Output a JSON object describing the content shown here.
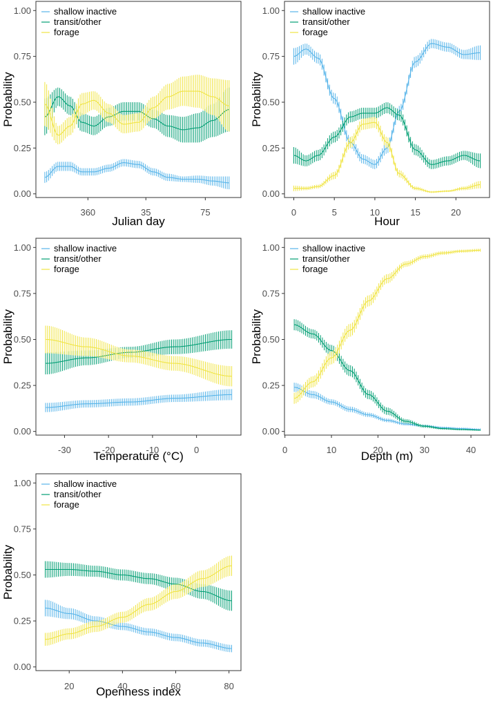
{
  "colors": {
    "shallow_inactive": "#56B4E9",
    "transit_other": "#009E73",
    "forage": "#F0E442",
    "axis": "#333333",
    "tick_text": "#4d4d4d"
  },
  "chart_data": [
    {
      "id": "julian",
      "type": "line",
      "title": "",
      "xlabel": "Julian day",
      "ylabel": "Probability",
      "xlim": [
        -35,
        103
      ],
      "ylim": [
        -0.02,
        1.05
      ],
      "grid": false,
      "legend_position": "top-left",
      "x_ticks": [
        {
          "value": 0,
          "label": "360"
        },
        {
          "value": 39,
          "label": "35"
        },
        {
          "value": 79,
          "label": "75"
        }
      ],
      "y_ticks": [
        {
          "value": 0,
          "label": "0.00"
        },
        {
          "value": 0.25,
          "label": "0.25"
        },
        {
          "value": 0.5,
          "label": "0.50"
        },
        {
          "value": 0.75,
          "label": "0.75"
        },
        {
          "value": 1,
          "label": "1.00"
        }
      ],
      "series": [
        {
          "name": "shallow inactive",
          "color_key": "shallow_inactive",
          "x": [
            -29,
            -20,
            -12,
            -4,
            4,
            14,
            24,
            34,
            44,
            54,
            64,
            74,
            84,
            95
          ],
          "y": [
            0.09,
            0.15,
            0.15,
            0.12,
            0.12,
            0.14,
            0.17,
            0.16,
            0.12,
            0.09,
            0.08,
            0.08,
            0.07,
            0.06
          ],
          "band": [
            0.03,
            0.025,
            0.025,
            0.02,
            0.02,
            0.02,
            0.02,
            0.02,
            0.02,
            0.02,
            0.015,
            0.02,
            0.025,
            0.035
          ]
        },
        {
          "name": "transit/other",
          "color_key": "transit_other",
          "x": [
            -29,
            -20,
            -12,
            -4,
            4,
            14,
            24,
            34,
            44,
            54,
            64,
            74,
            84,
            95
          ],
          "y": [
            0.42,
            0.53,
            0.48,
            0.39,
            0.37,
            0.42,
            0.45,
            0.45,
            0.41,
            0.37,
            0.35,
            0.36,
            0.4,
            0.46
          ],
          "band": [
            0.1,
            0.05,
            0.05,
            0.05,
            0.05,
            0.05,
            0.05,
            0.05,
            0.05,
            0.06,
            0.07,
            0.08,
            0.09,
            0.12
          ]
        },
        {
          "name": "forage",
          "color_key": "forage",
          "x": [
            -29,
            -20,
            -12,
            -4,
            4,
            14,
            24,
            34,
            44,
            54,
            64,
            74,
            84,
            95
          ],
          "y": [
            0.49,
            0.32,
            0.37,
            0.49,
            0.51,
            0.44,
            0.38,
            0.39,
            0.47,
            0.53,
            0.56,
            0.56,
            0.53,
            0.48
          ],
          "band": [
            0.12,
            0.05,
            0.05,
            0.06,
            0.05,
            0.05,
            0.05,
            0.05,
            0.06,
            0.07,
            0.08,
            0.09,
            0.1,
            0.14
          ]
        }
      ]
    },
    {
      "id": "hour",
      "type": "line",
      "title": "",
      "xlabel": "Hour",
      "ylabel": "Probability",
      "xlim": [
        -1.15,
        24.15
      ],
      "ylim": [
        -0.02,
        1.05
      ],
      "grid": false,
      "legend_position": "top-left",
      "x_ticks": [
        {
          "value": 0,
          "label": "0"
        },
        {
          "value": 5,
          "label": "5"
        },
        {
          "value": 10,
          "label": "10"
        },
        {
          "value": 15,
          "label": "15"
        },
        {
          "value": 20,
          "label": "20"
        }
      ],
      "y_ticks": [
        {
          "value": 0,
          "label": "0.00"
        },
        {
          "value": 0.25,
          "label": "0.25"
        },
        {
          "value": 0.5,
          "label": "0.50"
        },
        {
          "value": 0.75,
          "label": "0.75"
        },
        {
          "value": 1,
          "label": "1.00"
        }
      ],
      "series": [
        {
          "name": "shallow inactive",
          "color_key": "shallow_inactive",
          "x": [
            0,
            1.5,
            3,
            5,
            7,
            8.5,
            10,
            11.5,
            13,
            15,
            17,
            19,
            21,
            23
          ],
          "y": [
            0.75,
            0.79,
            0.74,
            0.52,
            0.28,
            0.19,
            0.16,
            0.25,
            0.45,
            0.72,
            0.82,
            0.8,
            0.76,
            0.77
          ],
          "band": [
            0.045,
            0.03,
            0.03,
            0.03,
            0.03,
            0.025,
            0.025,
            0.03,
            0.03,
            0.03,
            0.025,
            0.025,
            0.025,
            0.04
          ]
        },
        {
          "name": "transit/other",
          "color_key": "transit_other",
          "x": [
            0,
            1.5,
            3,
            5,
            7,
            8.5,
            10,
            11.5,
            13,
            15,
            17,
            19,
            21,
            23
          ],
          "y": [
            0.21,
            0.18,
            0.21,
            0.31,
            0.42,
            0.44,
            0.44,
            0.47,
            0.43,
            0.24,
            0.16,
            0.18,
            0.21,
            0.18
          ],
          "band": [
            0.045,
            0.03,
            0.03,
            0.03,
            0.03,
            0.03,
            0.03,
            0.03,
            0.03,
            0.03,
            0.025,
            0.025,
            0.025,
            0.04
          ]
        },
        {
          "name": "forage",
          "color_key": "forage",
          "x": [
            0,
            1.5,
            3,
            5,
            7,
            8.5,
            10,
            11.5,
            13,
            15,
            17,
            19,
            21,
            23
          ],
          "y": [
            0.03,
            0.03,
            0.04,
            0.1,
            0.28,
            0.38,
            0.39,
            0.28,
            0.11,
            0.03,
            0.01,
            0.015,
            0.03,
            0.05
          ],
          "band": [
            0.015,
            0.01,
            0.01,
            0.02,
            0.03,
            0.03,
            0.03,
            0.03,
            0.02,
            0.01,
            0.005,
            0.005,
            0.01,
            0.02
          ]
        }
      ]
    },
    {
      "id": "temperature",
      "type": "line",
      "title": "",
      "xlabel": "Temperature (°C)",
      "ylabel": "Probability",
      "xlim": [
        -36.5,
        10.1
      ],
      "ylim": [
        -0.02,
        1.05
      ],
      "grid": false,
      "legend_position": "top-left",
      "x_ticks": [
        {
          "value": -30,
          "label": "-30"
        },
        {
          "value": -20,
          "label": "-20"
        },
        {
          "value": -10,
          "label": "-10"
        },
        {
          "value": 0,
          "label": "0"
        }
      ],
      "y_ticks": [
        {
          "value": 0,
          "label": "0.00"
        },
        {
          "value": 0.25,
          "label": "0.25"
        },
        {
          "value": 0.5,
          "label": "0.50"
        },
        {
          "value": 0.75,
          "label": "0.75"
        },
        {
          "value": 1,
          "label": "1.00"
        }
      ],
      "series": [
        {
          "name": "shallow inactive",
          "color_key": "shallow_inactive",
          "x": [
            -34.3,
            -25,
            -15,
            -5,
            8
          ],
          "y": [
            0.13,
            0.15,
            0.16,
            0.18,
            0.2
          ],
          "band": [
            0.025,
            0.02,
            0.02,
            0.02,
            0.03
          ]
        },
        {
          "name": "transit/other",
          "color_key": "transit_other",
          "x": [
            -34.3,
            -25,
            -15,
            -5,
            8
          ],
          "y": [
            0.37,
            0.4,
            0.43,
            0.46,
            0.5
          ],
          "band": [
            0.06,
            0.04,
            0.03,
            0.04,
            0.05
          ]
        },
        {
          "name": "forage",
          "color_key": "forage",
          "x": [
            -34.3,
            -25,
            -15,
            -5,
            8
          ],
          "y": [
            0.5,
            0.46,
            0.41,
            0.37,
            0.3
          ],
          "band": [
            0.075,
            0.05,
            0.035,
            0.04,
            0.055
          ]
        }
      ]
    },
    {
      "id": "depth",
      "type": "line",
      "title": "",
      "xlabel": "Depth (m)",
      "ylabel": "Probability",
      "xlim": [
        -0.1,
        44
      ],
      "ylim": [
        -0.02,
        1.05
      ],
      "grid": false,
      "legend_position": "top-left",
      "x_ticks": [
        {
          "value": 0,
          "label": "0"
        },
        {
          "value": 10,
          "label": "10"
        },
        {
          "value": 20,
          "label": "20"
        },
        {
          "value": 30,
          "label": "30"
        },
        {
          "value": 40,
          "label": "40"
        }
      ],
      "y_ticks": [
        {
          "value": 0,
          "label": "0.00"
        },
        {
          "value": 0.25,
          "label": "0.25"
        },
        {
          "value": 0.5,
          "label": "0.50"
        },
        {
          "value": 0.75,
          "label": "0.75"
        },
        {
          "value": 1,
          "label": "1.00"
        }
      ],
      "series": [
        {
          "name": "shallow inactive",
          "color_key": "shallow_inactive",
          "x": [
            2,
            6,
            10,
            14,
            18,
            22,
            26,
            30,
            34,
            38,
            42
          ],
          "y": [
            0.24,
            0.2,
            0.16,
            0.12,
            0.09,
            0.06,
            0.04,
            0.03,
            0.02,
            0.015,
            0.01
          ],
          "band": [
            0.025,
            0.02,
            0.015,
            0.015,
            0.012,
            0.01,
            0.008,
            0.007,
            0.006,
            0.006,
            0.006
          ]
        },
        {
          "name": "transit/other",
          "color_key": "transit_other",
          "x": [
            2,
            6,
            10,
            14,
            18,
            22,
            26,
            30,
            34,
            38,
            42
          ],
          "y": [
            0.58,
            0.53,
            0.44,
            0.33,
            0.2,
            0.11,
            0.055,
            0.028,
            0.015,
            0.01,
            0.007
          ],
          "band": [
            0.03,
            0.025,
            0.03,
            0.03,
            0.025,
            0.02,
            0.012,
            0.008,
            0.005,
            0.004,
            0.003
          ]
        },
        {
          "name": "forage",
          "color_key": "forage",
          "x": [
            2,
            6,
            10,
            14,
            18,
            22,
            26,
            30,
            34,
            38,
            42
          ],
          "y": [
            0.18,
            0.27,
            0.4,
            0.55,
            0.71,
            0.83,
            0.91,
            0.95,
            0.97,
            0.98,
            0.985
          ],
          "band": [
            0.03,
            0.03,
            0.035,
            0.035,
            0.03,
            0.025,
            0.015,
            0.012,
            0.01,
            0.008,
            0.008
          ]
        }
      ]
    },
    {
      "id": "openness",
      "type": "line",
      "title": "",
      "xlabel": "Openness index",
      "ylabel": "Probability",
      "xlim": [
        7.5,
        84.5
      ],
      "ylim": [
        -0.02,
        1.05
      ],
      "grid": false,
      "legend_position": "top-left",
      "x_ticks": [
        {
          "value": 20,
          "label": "20"
        },
        {
          "value": 40,
          "label": "40"
        },
        {
          "value": 60,
          "label": "60"
        },
        {
          "value": 80,
          "label": "80"
        }
      ],
      "y_ticks": [
        {
          "value": 0,
          "label": "0.00"
        },
        {
          "value": 0.25,
          "label": "0.25"
        },
        {
          "value": 0.5,
          "label": "0.50"
        },
        {
          "value": 0.75,
          "label": "0.75"
        },
        {
          "value": 1,
          "label": "1.00"
        }
      ],
      "series": [
        {
          "name": "shallow inactive",
          "color_key": "shallow_inactive",
          "x": [
            11,
            20,
            30,
            40,
            50,
            60,
            70,
            81
          ],
          "y": [
            0.32,
            0.29,
            0.25,
            0.22,
            0.19,
            0.16,
            0.13,
            0.1
          ],
          "band": [
            0.045,
            0.03,
            0.025,
            0.02,
            0.02,
            0.02,
            0.02,
            0.02
          ]
        },
        {
          "name": "transit/other",
          "color_key": "transit_other",
          "x": [
            11,
            20,
            30,
            40,
            50,
            60,
            70,
            81
          ],
          "y": [
            0.53,
            0.53,
            0.52,
            0.5,
            0.48,
            0.45,
            0.41,
            0.36
          ],
          "band": [
            0.045,
            0.035,
            0.03,
            0.03,
            0.03,
            0.035,
            0.04,
            0.055
          ]
        },
        {
          "name": "forage",
          "color_key": "forage",
          "x": [
            11,
            20,
            30,
            40,
            50,
            60,
            70,
            81
          ],
          "y": [
            0.15,
            0.18,
            0.22,
            0.27,
            0.34,
            0.41,
            0.48,
            0.55
          ],
          "band": [
            0.035,
            0.03,
            0.03,
            0.03,
            0.035,
            0.04,
            0.045,
            0.055
          ]
        }
      ]
    }
  ]
}
